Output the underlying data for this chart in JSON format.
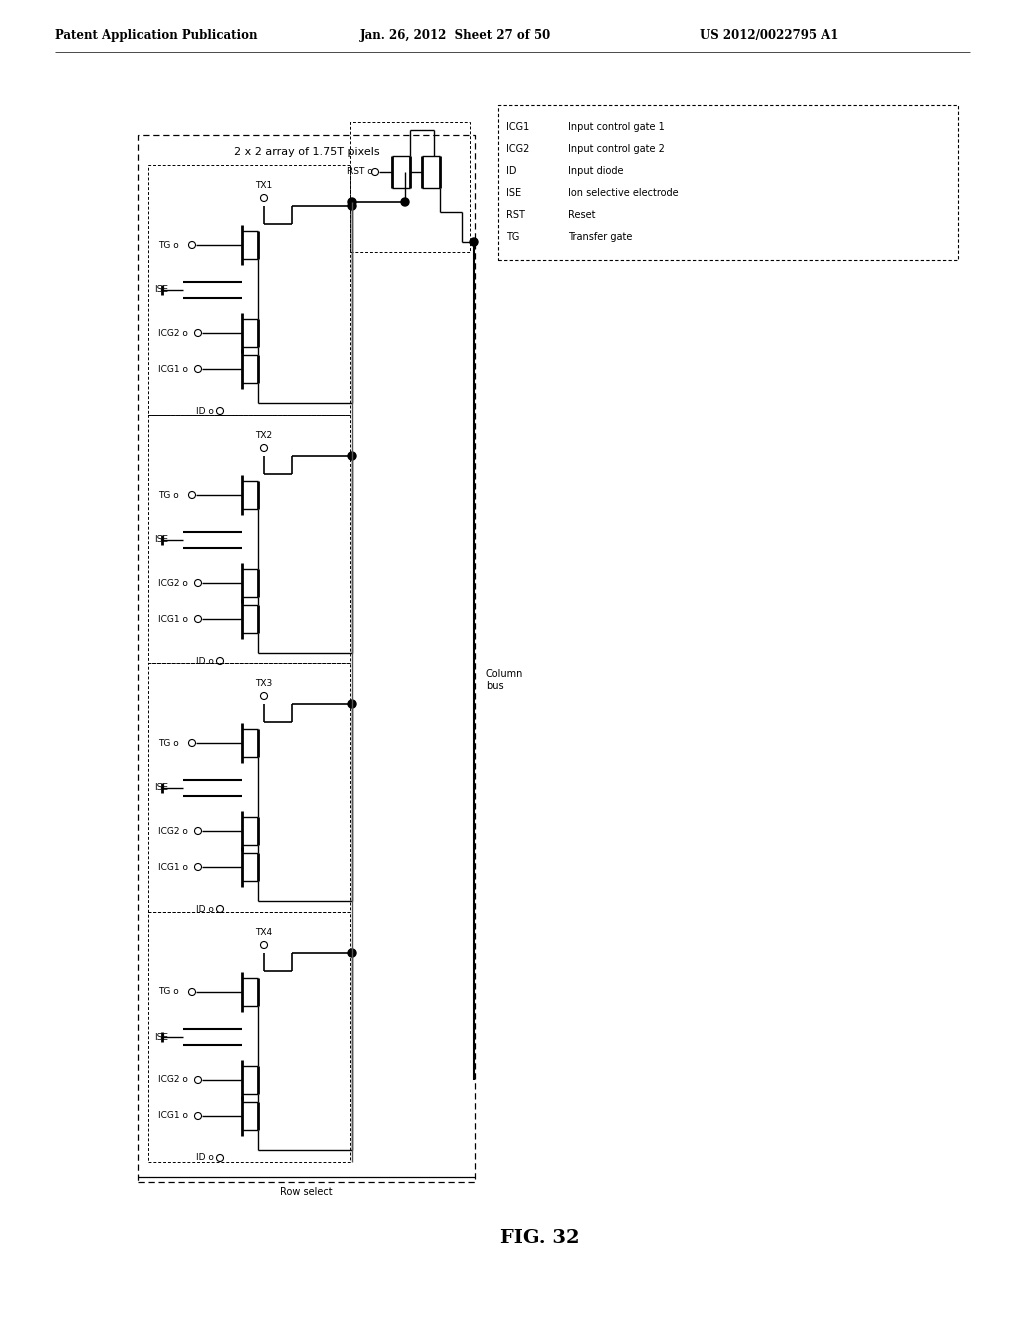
{
  "header_left": "Patent Application Publication",
  "header_mid": "Jan. 26, 2012  Sheet 27 of 50",
  "header_right": "US 2012/0022795 A1",
  "fig_label": "FIG. 32",
  "title_box": "2 x 2 array of 1.75T pixels",
  "legend": {
    "ICG1": "Input control gate 1",
    "ICG2": "Input control gate 2",
    "ID": "Input diode",
    "ISE": "Ion selective electrode",
    "RST": "Reset",
    "TG": "Transfer gate"
  },
  "pixels": [
    "TX1",
    "TX2",
    "TX3",
    "TX4"
  ],
  "bg_color": "#ffffff",
  "line_color": "#000000",
  "text_color": "#000000",
  "font_size_header": 8.5,
  "font_size_body": 6.5,
  "font_size_fig": 14
}
